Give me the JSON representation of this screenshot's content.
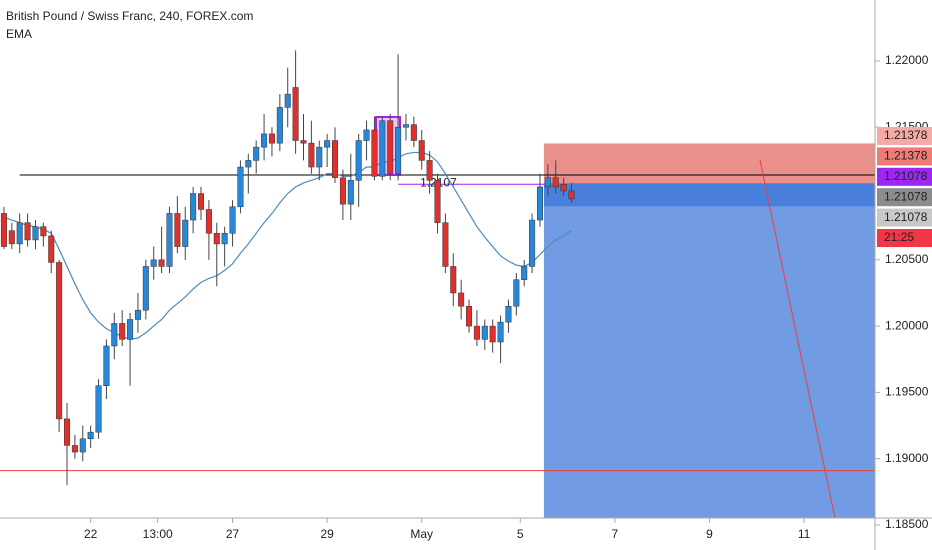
{
  "chart_data": {
    "type": "candlestick",
    "title": "British Pound / Swiss Franc, 240, FOREX.com",
    "indicator": "EMA",
    "up_color": "#2a87d8",
    "down_color": "#e0302e",
    "wick_color": "#444444",
    "xlim": [
      -0.5,
      110.5
    ],
    "xticks": [
      {
        "value": 11,
        "label": "22"
      },
      {
        "value": 19.5,
        "label": "13:00"
      },
      {
        "value": 29,
        "label": "27"
      },
      {
        "value": 41,
        "label": "29"
      },
      {
        "value": 53,
        "label": "May"
      },
      {
        "value": 65.5,
        "label": "5"
      },
      {
        "value": 77.5,
        "label": "7"
      },
      {
        "value": 89.5,
        "label": "9"
      },
      {
        "value": 101.5,
        "label": "11"
      }
    ],
    "ylim": [
      1.18311,
      1.2246
    ],
    "yticks": [
      {
        "value": 1.22,
        "label": "1.22000"
      },
      {
        "value": 1.215,
        "label": "1.21500"
      },
      {
        "value": 1.205,
        "label": "1.20500"
      },
      {
        "value": 1.2,
        "label": "1.20000"
      },
      {
        "value": 1.195,
        "label": "1.19500"
      },
      {
        "value": 1.19,
        "label": "1.19000"
      },
      {
        "value": 1.185,
        "label": "1.18500"
      }
    ],
    "open": [
      1.2085,
      1.2072,
      1.2062,
      1.2078,
      1.2065,
      1.2075,
      1.2068,
      1.2048,
      1.193,
      1.191,
      1.1905,
      1.1915,
      1.192,
      1.1955,
      1.1985,
      1.2002,
      1.199,
      1.2005,
      1.2012,
      1.2045,
      1.205,
      1.2045,
      1.2085,
      1.206,
      1.208,
      1.21,
      1.2088,
      1.207,
      1.2062,
      1.207,
      1.209,
      1.212,
      1.2125,
      1.2135,
      1.2145,
      1.2138,
      1.2165,
      1.218,
      1.214,
      1.2138,
      1.212,
      1.2135,
      1.214,
      1.2112,
      1.2092,
      1.211,
      1.214,
      1.2148,
      1.2113,
      1.2155,
      1.2115,
      1.215,
      1.2152,
      1.214,
      1.2125,
      1.211,
      1.2078,
      1.2045,
      1.2025,
      1.2015,
      1.2,
      1.199,
      1.2,
      1.1988,
      1.2003,
      1.2015,
      1.2035,
      1.2045,
      1.208,
      1.2105,
      1.2112,
      1.2107,
      1.2102
    ],
    "high": [
      1.209,
      1.2078,
      1.2085,
      1.2085,
      1.208,
      1.2078,
      1.2072,
      1.205,
      1.1942,
      1.1918,
      1.1925,
      1.1925,
      1.196,
      1.199,
      1.201,
      1.2012,
      1.201,
      1.2025,
      1.205,
      1.206,
      1.2075,
      1.209,
      1.2098,
      1.209,
      1.2105,
      1.2105,
      1.2095,
      1.2078,
      1.2075,
      1.2095,
      1.2125,
      1.213,
      1.214,
      1.216,
      1.215,
      1.2175,
      1.2195,
      1.2208,
      1.216,
      1.2155,
      1.214,
      1.2145,
      1.215,
      1.2118,
      1.213,
      1.2145,
      1.2155,
      1.2158,
      1.2158,
      1.216,
      1.2205,
      1.216,
      1.2158,
      1.2148,
      1.2132,
      1.2115,
      1.2085,
      1.2055,
      1.2035,
      1.202,
      1.2012,
      1.2005,
      1.2005,
      1.2008,
      1.202,
      1.204,
      1.205,
      1.2085,
      1.2115,
      1.2122,
      1.2125,
      1.2112,
      1.2108
    ],
    "low": [
      1.2058,
      1.2058,
      1.2055,
      1.206,
      1.2058,
      1.206,
      1.204,
      1.192,
      1.188,
      1.19,
      1.1898,
      1.1908,
      1.1915,
      1.1945,
      1.1975,
      1.1985,
      1.1955,
      1.1995,
      1.2005,
      1.2035,
      1.204,
      1.204,
      1.2055,
      1.205,
      1.207,
      1.208,
      1.205,
      1.203,
      1.2045,
      1.206,
      1.2085,
      1.21,
      1.2115,
      1.2125,
      1.2128,
      1.2132,
      1.215,
      1.213,
      1.2125,
      1.2115,
      1.211,
      1.212,
      1.2108,
      1.208,
      1.208,
      1.209,
      1.2125,
      1.211,
      1.211,
      1.211,
      1.211,
      1.214,
      1.2135,
      1.2118,
      1.21,
      1.207,
      1.204,
      1.2015,
      1.2005,
      1.1995,
      1.1985,
      1.1982,
      1.198,
      1.1972,
      1.1995,
      1.2008,
      1.203,
      1.204,
      1.2075,
      1.2098,
      1.21,
      1.2098,
      1.2093
    ],
    "close": [
      1.206,
      1.2062,
      1.2078,
      1.2065,
      1.2075,
      1.2068,
      1.2048,
      1.193,
      1.191,
      1.1905,
      1.1915,
      1.192,
      1.1955,
      1.1985,
      1.2002,
      1.199,
      1.2005,
      1.2012,
      1.2045,
      1.205,
      1.2045,
      1.2085,
      1.206,
      1.208,
      1.21,
      1.2088,
      1.207,
      1.2062,
      1.207,
      1.209,
      1.212,
      1.2125,
      1.2135,
      1.2145,
      1.2138,
      1.2165,
      1.2175,
      1.214,
      1.2138,
      1.212,
      1.2135,
      1.214,
      1.2112,
      1.2092,
      1.211,
      1.214,
      1.2148,
      1.2113,
      1.2155,
      1.2115,
      1.215,
      1.2152,
      1.214,
      1.2125,
      1.211,
      1.2078,
      1.2045,
      1.2025,
      1.2015,
      1.2,
      1.199,
      1.2,
      1.1988,
      1.2003,
      1.2015,
      1.2035,
      1.2045,
      1.208,
      1.2105,
      1.2112,
      1.2105,
      1.2102,
      1.2096
    ],
    "ema": {
      "color": "#4a8bbf",
      "values": [
        1.2082,
        1.208,
        1.2078,
        1.2076,
        1.2075,
        1.2073,
        1.207,
        1.2058,
        1.2045,
        1.2032,
        1.202,
        1.201,
        1.2003,
        1.1998,
        1.1995,
        1.1992,
        1.199,
        1.1991,
        1.1995,
        1.2,
        1.2005,
        1.2012,
        1.2017,
        1.2022,
        1.2028,
        1.2033,
        1.2036,
        1.2038,
        1.2042,
        1.2047,
        1.2055,
        1.2062,
        1.207,
        1.2078,
        1.2085,
        1.2093,
        1.21,
        1.2105,
        1.2108,
        1.211,
        1.2112,
        1.2115,
        1.2115,
        1.2113,
        1.2113,
        1.2116,
        1.212,
        1.212,
        1.2124,
        1.2124,
        1.2127,
        1.213,
        1.2131,
        1.2131,
        1.2129,
        1.2124,
        1.2115,
        1.2105,
        1.2095,
        1.2085,
        1.2075,
        1.2067,
        1.206,
        1.2053,
        1.2049,
        1.2046,
        1.2045,
        1.2048,
        1.2054,
        1.206,
        1.2065,
        1.2068,
        1.2072
      ]
    },
    "hlines": [
      {
        "value": 1.2114,
        "color": "#000000",
        "from": 2
      },
      {
        "value": 1.1891,
        "color": "#e8413e",
        "from": -0.5
      },
      {
        "value": 1.2107,
        "color": "#a020f0",
        "from": 50,
        "label": "1.2107"
      }
    ],
    "position": {
      "start": 68.5,
      "stop": 1.21378,
      "entry": 1.21078,
      "stop_color": "#e9908d",
      "target_color": "#719ce3"
    },
    "badges": [
      {
        "label": "1.21378",
        "color": "#f4aaa7",
        "text": "#7a1a18"
      },
      {
        "label": "1.21378",
        "color": "#ef7b76",
        "text": "#ffffff"
      },
      {
        "label": "1.21078",
        "color": "#9c27f0",
        "text": "#ffffff"
      },
      {
        "label": "1.21078",
        "color": "#8c8c8c",
        "text": "#ffffff"
      },
      {
        "label": "1.21078",
        "color": "#c8c8c8",
        "text": "#222222"
      },
      {
        "label": "21:25",
        "color": "#f23645",
        "text": "#ffffff"
      }
    ]
  }
}
